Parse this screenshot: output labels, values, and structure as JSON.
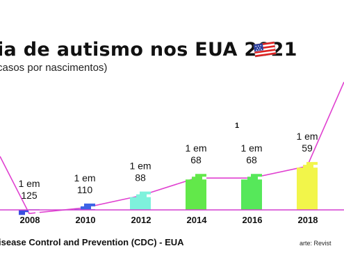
{
  "header": {
    "title": "ia de autismo nos EUA 2021",
    "subtitle": "casos por nascimentos)",
    "flag_icon": "us-flag-icon"
  },
  "footer": {
    "source": "isease Control and Prevention (CDC) - EUA",
    "credit": "arte: Revist"
  },
  "chart_data": {
    "type": "bar",
    "categories": [
      "2008",
      "2010",
      "2012",
      "2014",
      "2016",
      "2018"
    ],
    "values": [
      125,
      110,
      88,
      68,
      68,
      59
    ],
    "labels": [
      [
        "1 em",
        "125"
      ],
      [
        "1 em",
        "110"
      ],
      [
        "1 em",
        "88"
      ],
      [
        "1 em",
        "68"
      ],
      [
        "1 em",
        "68"
      ],
      [
        "1 em",
        "59"
      ]
    ],
    "bar_colors": [
      "#3b4fe0",
      "#3d63e6",
      "#7ef2dc",
      "#62e84a",
      "#56e85a",
      "#f2f54a"
    ],
    "trend_line_color": "#e040d0",
    "axis_line_color": "#d43fd0",
    "stray_annotation": "1"
  }
}
